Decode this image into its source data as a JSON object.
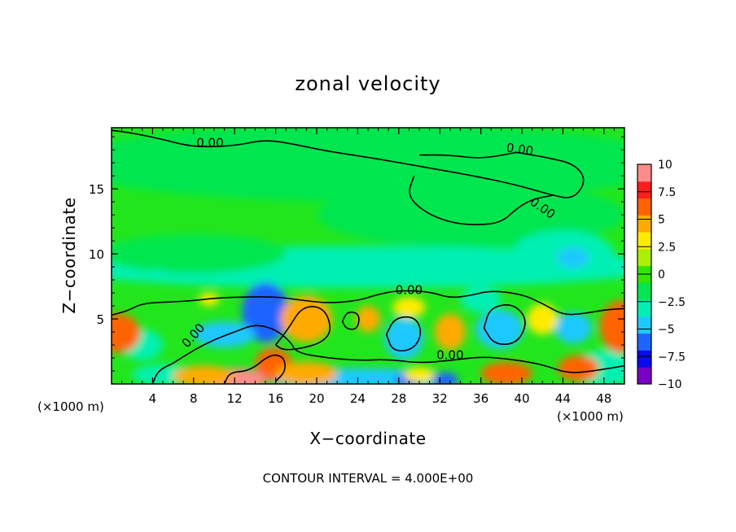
{
  "chart_data": {
    "type": "heatmap",
    "title": "zonal velocity",
    "xlabel": "X−coordinate",
    "ylabel": "Z−coordinate",
    "x_unit_label": "(×1000 m)",
    "x_unit_label_right": "(×1000 m)",
    "xlim": [
      0,
      50
    ],
    "ylim": [
      0,
      19.7
    ],
    "x_ticks": [
      4,
      8,
      12,
      16,
      20,
      24,
      28,
      32,
      36,
      40,
      44,
      48
    ],
    "y_ticks": [
      5,
      10,
      15
    ],
    "colorbar": {
      "range": [
        -10,
        10
      ],
      "ticks": [
        10,
        7.5,
        5,
        2.5,
        0,
        -2.5,
        -5,
        -7.5,
        -10
      ],
      "tick_labels": [
        "10",
        "7.5",
        "5",
        "2.5",
        "0",
        "−2.5",
        "−5",
        "−7.5",
        "−10"
      ],
      "colors": [
        "#7a00c8",
        "#0a0af0",
        "#1e64ff",
        "#1ec8ff",
        "#00f0b4",
        "#00e650",
        "#32e600",
        "#aaf000",
        "#ffeb00",
        "#ffaa00",
        "#ff6400",
        "#ff1e1e",
        "#ff8c8c"
      ]
    },
    "contour_interval_text": "CONTOUR INTERVAL = 4.000E+00",
    "contour_labels": [
      {
        "text": "0.00",
        "x": 9.6,
        "y": 18.5,
        "rot": 0
      },
      {
        "text": "0.00",
        "x": 39.8,
        "y": 18.0,
        "rot": 8
      },
      {
        "text": "0.00",
        "x": 42.0,
        "y": 13.5,
        "rot": 35
      },
      {
        "text": "0.00",
        "x": 29.0,
        "y": 7.2,
        "rot": 0
      },
      {
        "text": "0.00",
        "x": 8.0,
        "y": 3.7,
        "rot": -48
      },
      {
        "text": "0.00",
        "x": 33.0,
        "y": 2.2,
        "rot": 0
      }
    ],
    "features": [
      {
        "v": -1.0,
        "x": 25,
        "y": 17,
        "rx": 30,
        "ry": 3
      },
      {
        "v": -2.0,
        "x": 35,
        "y": 13,
        "rx": 15,
        "ry": 2.5
      },
      {
        "v": -3.2,
        "x": 24,
        "y": 9,
        "rx": 30,
        "ry": 1.6
      },
      {
        "v": -2.5,
        "x": 8,
        "y": 10,
        "rx": 9,
        "ry": 1.5
      },
      {
        "v": -2.8,
        "x": 44,
        "y": 10,
        "rx": 5,
        "ry": 1.8
      },
      {
        "v": -4.8,
        "x": 45,
        "y": 9.7,
        "rx": 1.6,
        "ry": 0.8
      },
      {
        "v": -4.0,
        "x": 4.6,
        "y": 8.3,
        "rx": 1.0,
        "ry": 0.5
      },
      {
        "v": -6.5,
        "x": 15.0,
        "y": 5.5,
        "rx": 2.3,
        "ry": 2.3
      },
      {
        "v": -5.5,
        "x": 11.0,
        "y": 3.8,
        "rx": 3.0,
        "ry": 1.0
      },
      {
        "v": -5.5,
        "x": 28.5,
        "y": 3.5,
        "rx": 1.9,
        "ry": 1.6
      },
      {
        "v": -5.5,
        "x": 37.8,
        "y": 4.2,
        "rx": 2.3,
        "ry": 1.5
      },
      {
        "v": -5.5,
        "x": 45.0,
        "y": 4.3,
        "rx": 1.8,
        "ry": 1.2
      },
      {
        "v": -4.0,
        "x": 48,
        "y": 1.2,
        "rx": 3,
        "ry": 1.4
      },
      {
        "v": -4.5,
        "x": 24,
        "y": 0.4,
        "rx": 9,
        "ry": 0.8
      },
      {
        "v": -7.0,
        "x": 32.5,
        "y": 0.3,
        "rx": 1.3,
        "ry": 0.6
      },
      {
        "v": -6.0,
        "x": 29.0,
        "y": 0.3,
        "rx": 1.3,
        "ry": 0.6
      },
      {
        "v": -3.5,
        "x": 5.0,
        "y": 0.7,
        "rx": 3.0,
        "ry": 0.8
      },
      {
        "v": -3.5,
        "x": 3.0,
        "y": 3.0,
        "rx": 2.0,
        "ry": 1.2
      },
      {
        "v": -3.5,
        "x": 36.0,
        "y": 6.5,
        "rx": 2.0,
        "ry": 1.0
      },
      {
        "v": 7.0,
        "x": 0.6,
        "y": 3.9,
        "rx": 2.2,
        "ry": 1.5
      },
      {
        "v": 7.0,
        "x": 49.6,
        "y": 4.4,
        "rx": 2.0,
        "ry": 2.0
      },
      {
        "v": 5.0,
        "x": 19.0,
        "y": 5.0,
        "rx": 2.5,
        "ry": 1.8
      },
      {
        "v": 5.0,
        "x": 25.0,
        "y": 5.0,
        "rx": 1.2,
        "ry": 1.0
      },
      {
        "v": 3.0,
        "x": 29.0,
        "y": 5.9,
        "rx": 1.6,
        "ry": 0.8
      },
      {
        "v": 5.5,
        "x": 33.0,
        "y": 4.0,
        "rx": 1.5,
        "ry": 1.4
      },
      {
        "v": 6.5,
        "x": 15.8,
        "y": 1.5,
        "rx": 1.8,
        "ry": 1.3
      },
      {
        "v": 10.5,
        "x": 12.0,
        "y": 0.3,
        "rx": 3.0,
        "ry": 0.9
      },
      {
        "v": 5.0,
        "x": 9.0,
        "y": 0.6,
        "rx": 3.0,
        "ry": 0.8
      },
      {
        "v": 5.0,
        "x": 19.0,
        "y": 0.8,
        "rx": 3.0,
        "ry": 0.9
      },
      {
        "v": 6.0,
        "x": 38.5,
        "y": 0.8,
        "rx": 2.5,
        "ry": 0.9
      },
      {
        "v": 7.0,
        "x": 45.5,
        "y": 1.2,
        "rx": 2.0,
        "ry": 1.0
      },
      {
        "v": 4.0,
        "x": 30.0,
        "y": 0.7,
        "rx": 1.5,
        "ry": 0.6
      },
      {
        "v": 3.0,
        "x": 42.0,
        "y": 5.0,
        "rx": 1.5,
        "ry": 1.2
      },
      {
        "v": 3.0,
        "x": 9.5,
        "y": 6.5,
        "rx": 1.0,
        "ry": 0.5
      }
    ],
    "zero_contours": [
      [
        [
          0,
          19.5
        ],
        [
          2,
          19.3
        ],
        [
          5,
          18.8
        ],
        [
          8,
          18.2
        ],
        [
          12,
          18.3
        ],
        [
          15,
          18.8
        ],
        [
          18,
          18.4
        ],
        [
          21,
          17.9
        ],
        [
          26,
          17.3
        ],
        [
          31,
          16.6
        ],
        [
          36,
          15.9
        ],
        [
          40,
          15.2
        ],
        [
          43,
          14.5
        ],
        [
          45,
          14.2
        ],
        [
          46.3,
          15.6
        ],
        [
          45.2,
          16.9
        ],
        [
          42.5,
          17.4
        ],
        [
          39.5,
          17.8
        ]
      ],
      [
        [
          30,
          17.6
        ],
        [
          33,
          17.6
        ],
        [
          36,
          17.3
        ],
        [
          39.5,
          17.8
        ]
      ],
      [
        [
          29.5,
          16.0
        ],
        [
          28.8,
          14.5
        ],
        [
          30.5,
          13.2
        ],
        [
          33,
          12.4
        ],
        [
          35.5,
          12.2
        ],
        [
          38,
          12.4
        ],
        [
          39.5,
          13.5
        ],
        [
          41,
          14.2
        ],
        [
          43,
          14.5
        ]
      ],
      [
        [
          0,
          5.3
        ],
        [
          1.5,
          5.6
        ],
        [
          3,
          6.2
        ],
        [
          5.5,
          6.3
        ],
        [
          8,
          6.4
        ],
        [
          10,
          6.6
        ],
        [
          13,
          6.7
        ],
        [
          16,
          6.7
        ],
        [
          18,
          6.5
        ],
        [
          21,
          6.2
        ],
        [
          24,
          6.4
        ],
        [
          26,
          6.9
        ],
        [
          28,
          7.2
        ],
        [
          31,
          7.1
        ],
        [
          33,
          6.6
        ],
        [
          35,
          6.8
        ],
        [
          37,
          7.2
        ],
        [
          40,
          6.9
        ],
        [
          42,
          6.2
        ],
        [
          44,
          5.3
        ],
        [
          46,
          5.4
        ],
        [
          48,
          5.7
        ],
        [
          50,
          5.8
        ]
      ],
      [
        [
          6,
          1.6
        ],
        [
          8,
          2.6
        ],
        [
          10,
          3.4
        ],
        [
          12,
          4.0
        ],
        [
          14,
          4.6
        ],
        [
          16,
          4.2
        ],
        [
          17.5,
          3.2
        ],
        [
          18,
          2.4
        ],
        [
          21,
          2.0
        ],
        [
          24,
          1.8
        ],
        [
          27,
          1.9
        ],
        [
          30,
          1.6
        ],
        [
          33,
          1.8
        ],
        [
          36,
          2.1
        ],
        [
          39,
          1.9
        ],
        [
          42,
          1.5
        ],
        [
          44.5,
          0.8
        ],
        [
          47,
          1.0
        ],
        [
          50,
          1.4
        ]
      ],
      [
        [
          4,
          0.0
        ],
        [
          4.5,
          1.0
        ],
        [
          6,
          1.6
        ]
      ],
      [
        [
          16,
          3.0
        ],
        [
          17.2,
          4.2
        ],
        [
          18.6,
          6.0
        ],
        [
          20.7,
          5.9
        ],
        [
          21.5,
          4.2
        ],
        [
          20.6,
          3.2
        ],
        [
          18.4,
          2.7
        ],
        [
          16.7,
          2.6
        ],
        [
          16,
          3.0
        ]
      ],
      [
        [
          36.3,
          4.3
        ],
        [
          36.9,
          5.9
        ],
        [
          39.2,
          6.2
        ],
        [
          40.6,
          4.9
        ],
        [
          39.6,
          3.1
        ],
        [
          37.3,
          3.0
        ],
        [
          36.3,
          4.3
        ]
      ],
      [
        [
          26.8,
          3.8
        ],
        [
          27.6,
          5.1
        ],
        [
          29.6,
          5.2
        ],
        [
          30.3,
          3.9
        ],
        [
          29.4,
          2.6
        ],
        [
          27.4,
          2.5
        ],
        [
          26.8,
          3.8
        ]
      ],
      [
        [
          22.5,
          4.8
        ],
        [
          23.0,
          5.6
        ],
        [
          24.2,
          5.4
        ],
        [
          24.0,
          4.2
        ],
        [
          22.9,
          4.2
        ],
        [
          22.5,
          4.8
        ]
      ],
      [
        [
          11.0,
          0.0
        ],
        [
          11.5,
          0.9
        ],
        [
          13.5,
          1.0
        ],
        [
          15.5,
          2.3
        ],
        [
          16.8,
          2.1
        ],
        [
          17.0,
          1.0
        ],
        [
          16.0,
          0.2
        ]
      ]
    ]
  }
}
